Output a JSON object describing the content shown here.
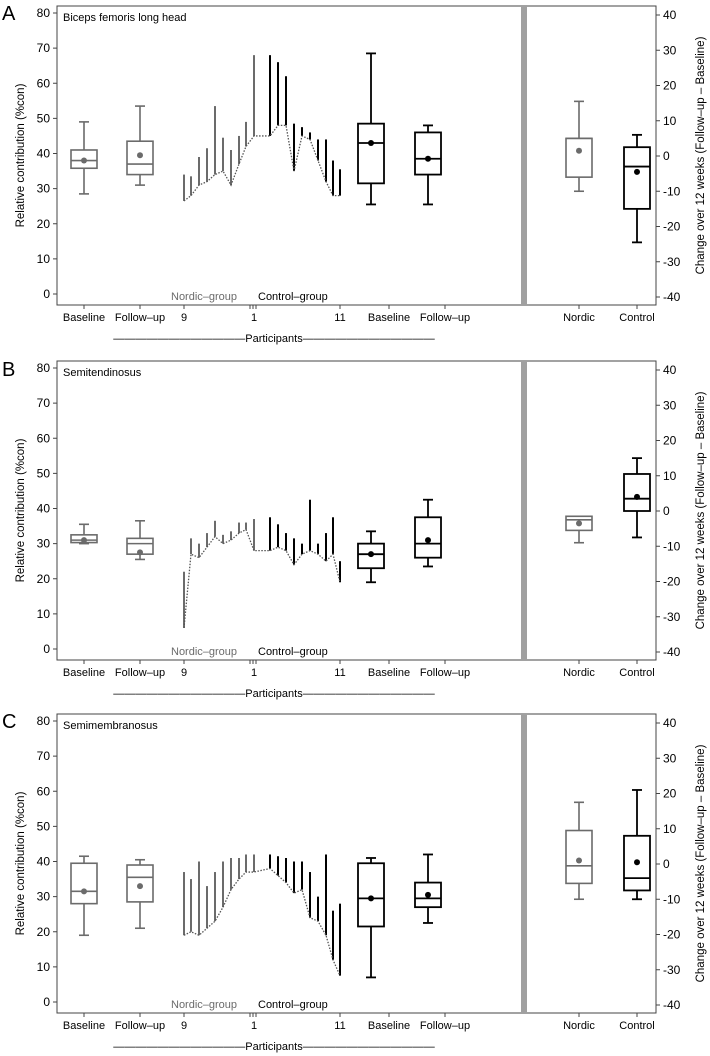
{
  "figure": {
    "left_axis_label": "Relative contribution (%con)",
    "right_axis_label": "Change over 12 weeks (Follow–up – Baseline)"
  },
  "colors": {
    "grey": "#6b6b6b",
    "black": "#000000",
    "divider": "#a0a0a0"
  },
  "chart_data": [
    {
      "type": "box",
      "panel_letter": "A",
      "title": "Biceps femoris long head",
      "left_ylim": [
        0,
        80
      ],
      "left_ticks": [
        0,
        10,
        20,
        30,
        40,
        50,
        60,
        70,
        80
      ],
      "right_ylim": [
        -40,
        40
      ],
      "right_ticks": [
        -40,
        -30,
        -20,
        -10,
        0,
        10,
        20,
        30,
        40
      ],
      "x_labels": [
        "Baseline",
        "Follow–up",
        "9",
        "1",
        "11",
        "Baseline",
        "Follow–up",
        "Nordic",
        "Control"
      ],
      "group_labels": {
        "nordic": "Nordic–group",
        "control": "Control–group"
      },
      "participants_label": "————————————Participants————————————",
      "boxes": [
        {
          "group": "Nordic",
          "label": "Baseline",
          "min": 28.5,
          "q1": 35.8,
          "median": 38,
          "q3": 41,
          "max": 49,
          "mean": 38
        },
        {
          "group": "Nordic",
          "label": "Follow–up",
          "min": 31,
          "q1": 34,
          "median": 37,
          "q3": 43.5,
          "max": 53.5,
          "mean": 39.5
        },
        {
          "group": "Control",
          "label": "Baseline",
          "min": 25.5,
          "q1": 31.5,
          "median": 43,
          "q3": 48.5,
          "max": 68.5,
          "mean": 43
        },
        {
          "group": "Control",
          "label": "Follow–up",
          "min": 25.5,
          "q1": 34,
          "median": 38.5,
          "q3": 46,
          "max": 48,
          "mean": 38.5
        }
      ],
      "change_boxes": [
        {
          "label": "Nordic",
          "min": -10,
          "q1": -6,
          "median": 5,
          "q3": 5,
          "max": 15.5,
          "mean": 1.5
        },
        {
          "label": "Control",
          "min": -24.5,
          "q1": -15,
          "median": -3,
          "q3": 2.5,
          "max": 6,
          "mean": -4.5
        }
      ],
      "participants": {
        "nordic": [
          [
            26.5,
            34
          ],
          [
            28,
            33.5
          ],
          [
            31,
            39
          ],
          [
            32,
            41.5
          ],
          [
            34,
            53.5
          ],
          [
            35,
            44.5
          ],
          [
            31,
            41
          ],
          [
            37,
            45
          ],
          [
            42,
            49
          ],
          [
            45,
            68
          ]
        ],
        "control": [
          [
            45,
            68
          ],
          [
            48,
            66
          ],
          [
            48,
            62
          ],
          [
            35,
            48.5
          ],
          [
            45,
            47.5
          ],
          [
            44,
            46
          ],
          [
            38,
            44
          ],
          [
            32,
            44
          ],
          [
            28,
            38
          ],
          [
            28,
            35.5
          ]
        ]
      }
    },
    {
      "type": "box",
      "panel_letter": "B",
      "title": "Semitendinosus",
      "left_ylim": [
        0,
        80
      ],
      "left_ticks": [
        0,
        10,
        20,
        30,
        40,
        50,
        60,
        70,
        80
      ],
      "right_ylim": [
        -40,
        40
      ],
      "right_ticks": [
        -40,
        -30,
        -20,
        -10,
        0,
        10,
        20,
        30,
        40
      ],
      "x_labels": [
        "Baseline",
        "Follow–up",
        "9",
        "1",
        "11",
        "Baseline",
        "Follow–up",
        "Nordic",
        "Control"
      ],
      "group_labels": {
        "nordic": "Nordic–group",
        "control": "Control–group"
      },
      "participants_label": "————————————Participants————————————",
      "boxes": [
        {
          "group": "Nordic",
          "label": "Baseline",
          "min": 30,
          "q1": 30.3,
          "median": 31,
          "q3": 32.5,
          "max": 35.5,
          "mean": 31
        },
        {
          "group": "Nordic",
          "label": "Follow–up",
          "min": 25.5,
          "q1": 27,
          "median": 30,
          "q3": 31.5,
          "max": 36.5,
          "mean": 27.5
        },
        {
          "group": "Control",
          "label": "Baseline",
          "min": 19,
          "q1": 23,
          "median": 27,
          "q3": 30,
          "max": 33.5,
          "mean": 27
        },
        {
          "group": "Control",
          "label": "Follow–up",
          "min": 23.5,
          "q1": 26,
          "median": 30,
          "q3": 37.5,
          "max": 42.5,
          "mean": 31
        }
      ],
      "change_boxes": [
        {
          "label": "Nordic",
          "min": -9,
          "q1": -5.5,
          "median": -2.5,
          "q3": -1.5,
          "max": -1.5,
          "mean": -3.5
        },
        {
          "label": "Control",
          "min": -7.5,
          "q1": 0,
          "median": 3.5,
          "q3": 10.5,
          "max": 15,
          "mean": 4
        }
      ],
      "participants": {
        "nordic": [
          [
            6,
            22
          ],
          [
            27,
            31.5
          ],
          [
            26,
            30
          ],
          [
            29,
            33
          ],
          [
            32,
            36.5
          ],
          [
            30,
            32.5
          ],
          [
            31,
            33.5
          ],
          [
            33,
            36
          ],
          [
            34,
            36
          ],
          [
            28,
            37
          ]
        ],
        "control": [
          [
            28,
            37.5
          ],
          [
            29,
            35.5
          ],
          [
            28,
            33
          ],
          [
            24,
            31.5
          ],
          [
            27,
            30
          ],
          [
            28,
            42.5
          ],
          [
            27,
            30
          ],
          [
            25,
            33
          ],
          [
            27,
            37.5
          ],
          [
            19,
            25
          ]
        ]
      }
    },
    {
      "type": "box",
      "panel_letter": "C",
      "title": "Semimembranosus",
      "left_ylim": [
        0,
        80
      ],
      "left_ticks": [
        0,
        10,
        20,
        30,
        40,
        50,
        60,
        70,
        80
      ],
      "right_ylim": [
        -40,
        40
      ],
      "right_ticks": [
        -40,
        -30,
        -20,
        -10,
        0,
        10,
        20,
        30,
        40
      ],
      "x_labels": [
        "Baseline",
        "Follow–up",
        "9",
        "1",
        "11",
        "Baseline",
        "Follow–up",
        "Nordic",
        "Control"
      ],
      "group_labels": {
        "nordic": "Nordic–group",
        "control": "Control–group"
      },
      "participants_label": "————————————Participants————————————",
      "boxes": [
        {
          "group": "Nordic",
          "label": "Baseline",
          "min": 19,
          "q1": 28,
          "median": 31.5,
          "q3": 39.5,
          "max": 41.5,
          "mean": 31.5
        },
        {
          "group": "Nordic",
          "label": "Follow–up",
          "min": 21,
          "q1": 28.5,
          "median": 35.5,
          "q3": 39,
          "max": 40.5,
          "mean": 33
        },
        {
          "group": "Control",
          "label": "Baseline",
          "min": 7,
          "q1": 21.5,
          "median": 29.5,
          "q3": 39.5,
          "max": 41,
          "mean": 29.5
        },
        {
          "group": "Control",
          "label": "Follow–up",
          "min": 22.5,
          "q1": 27,
          "median": 29.5,
          "q3": 34,
          "max": 42,
          "mean": 30.5
        }
      ],
      "change_boxes": [
        {
          "label": "Nordic",
          "min": -10,
          "q1": -5.5,
          "median": -0.5,
          "q3": 9.5,
          "max": 17.5,
          "mean": 1
        },
        {
          "label": "Control",
          "min": -10,
          "q1": -7.5,
          "median": -4,
          "q3": 8,
          "max": 21,
          "mean": 0.5
        }
      ],
      "participants": {
        "nordic": [
          [
            19,
            37
          ],
          [
            20,
            35
          ],
          [
            19,
            40
          ],
          [
            21,
            33
          ],
          [
            23,
            37
          ],
          [
            27,
            40
          ],
          [
            32,
            41
          ],
          [
            35,
            41
          ],
          [
            37,
            42
          ],
          [
            37,
            42
          ]
        ],
        "control": [
          [
            38,
            42
          ],
          [
            36,
            41.5
          ],
          [
            34,
            41
          ],
          [
            31,
            40
          ],
          [
            32,
            40
          ],
          [
            24,
            37
          ],
          [
            23,
            30
          ],
          [
            19,
            42
          ],
          [
            12,
            26
          ],
          [
            7.5,
            28
          ]
        ]
      }
    }
  ]
}
